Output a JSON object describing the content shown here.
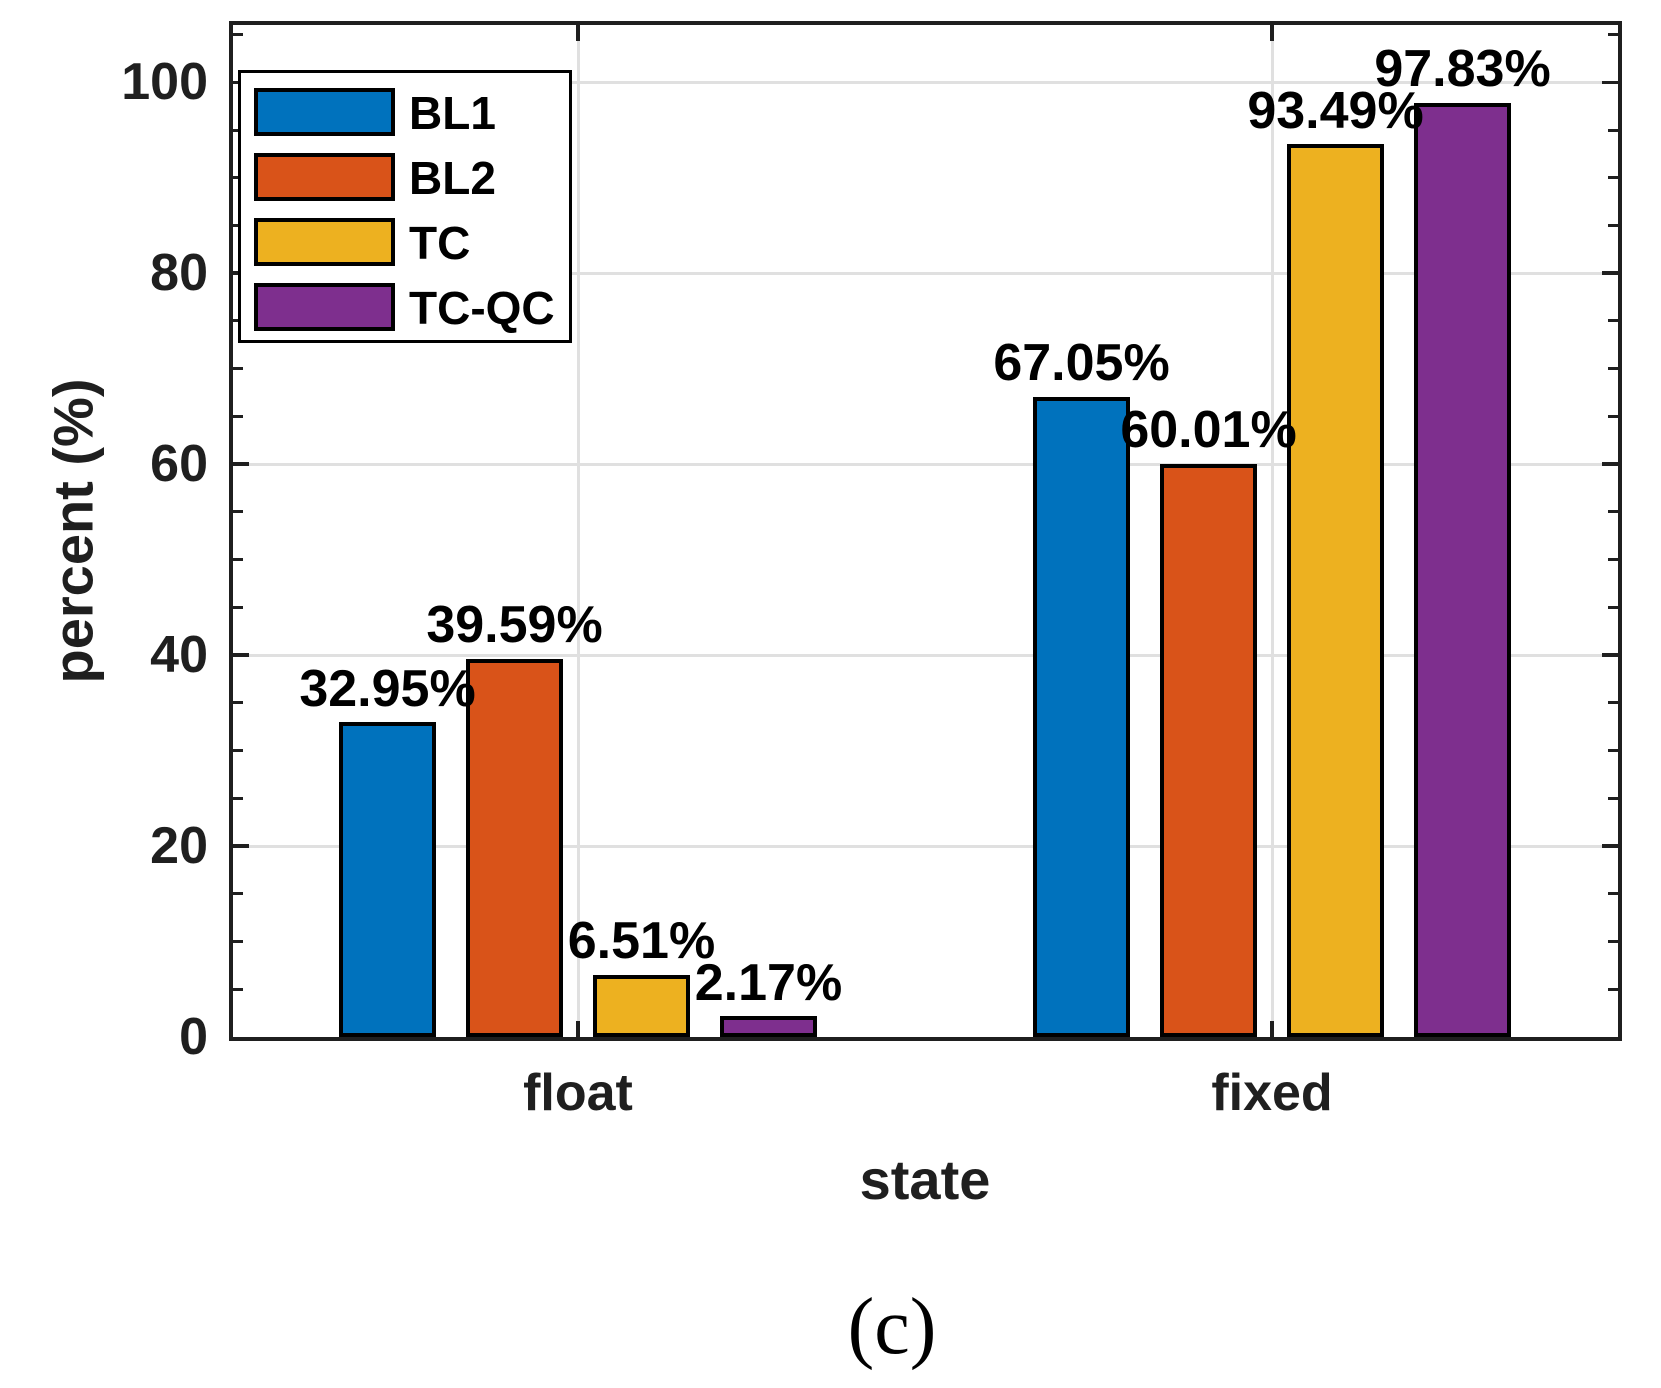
{
  "caption": "(c)",
  "chart_data": {
    "type": "bar",
    "title": "",
    "xlabel": "state",
    "ylabel": "percent (%)",
    "categories": [
      "float",
      "fixed"
    ],
    "series": [
      {
        "name": "BL1",
        "color": "#0072BD",
        "values": [
          32.95,
          67.05
        ],
        "labels": [
          "32.95%",
          "67.05%"
        ]
      },
      {
        "name": "BL2",
        "color": "#D95319",
        "values": [
          39.59,
          60.01
        ],
        "labels": [
          "39.59%",
          "60.01%"
        ]
      },
      {
        "name": "TC",
        "color": "#EDB120",
        "values": [
          6.51,
          93.49
        ],
        "labels": [
          "6.51%",
          "93.49%"
        ]
      },
      {
        "name": "TC-QC",
        "color": "#7E2F8E",
        "values": [
          2.17,
          97.83
        ],
        "labels": [
          "2.17%",
          "97.83%"
        ]
      }
    ],
    "ylim": [
      0,
      106
    ],
    "yticks": [
      0,
      20,
      40,
      60,
      80,
      100
    ],
    "ytick_labels": [
      "0",
      "20",
      "40",
      "60",
      "80",
      "100"
    ],
    "minor_tick_step": 5,
    "grid": true,
    "legend_position": "top-left",
    "axis_color": "#1f1f1f",
    "grid_color": "#e0e0e0",
    "bar_edge_color": "#000000"
  }
}
